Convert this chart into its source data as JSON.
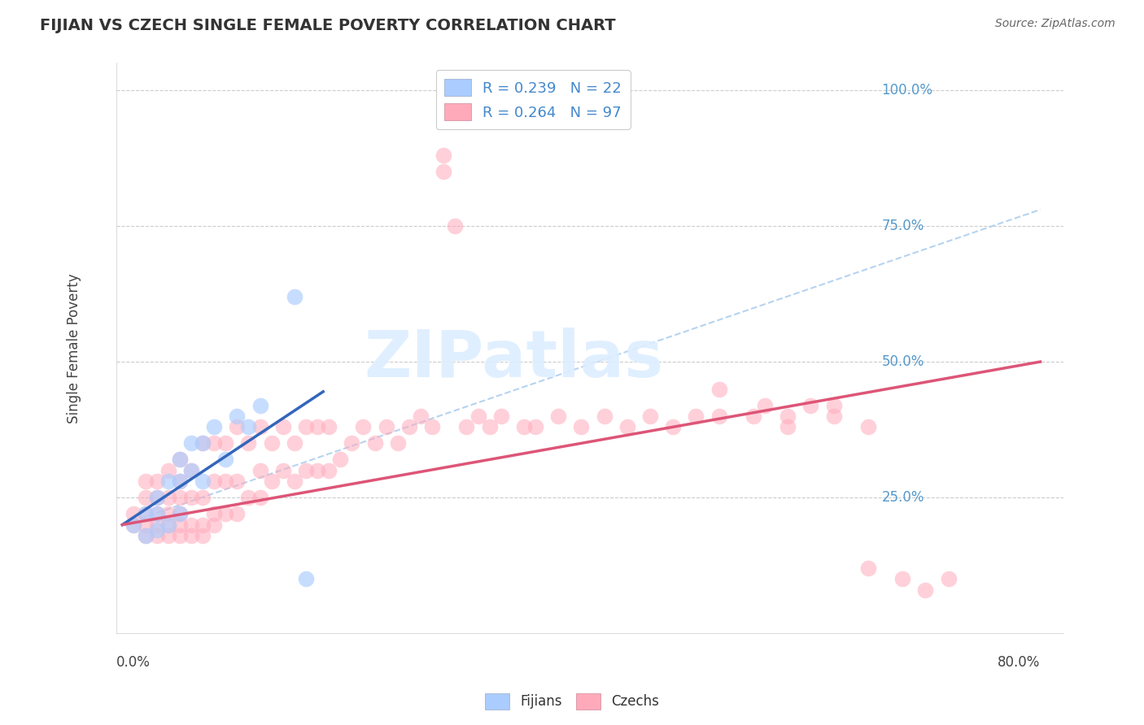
{
  "title": "FIJIAN VS CZECH SINGLE FEMALE POVERTY CORRELATION CHART",
  "source": "Source: ZipAtlas.com",
  "ylabel": "Single Female Poverty",
  "ytick_labels": [
    "25.0%",
    "50.0%",
    "75.0%",
    "100.0%"
  ],
  "ytick_values": [
    0.25,
    0.5,
    0.75,
    1.0
  ],
  "xlim": [
    0.0,
    0.8
  ],
  "ylim": [
    0.0,
    1.0
  ],
  "fijian_color": "#aaccff",
  "fijian_edge": "#88aaee",
  "czech_color": "#ffaabb",
  "czech_edge": "#ee88aa",
  "trendline_fijian_color": "#3366bb",
  "trendline_czech_color": "#dd5577",
  "trendline_dashed_color": "#aaccee",
  "grid_color": "#cccccc",
  "background_color": "#ffffff",
  "watermark": "ZIPatlas",
  "watermark_color": "#ddeeff",
  "fijians_x": [
    0.01,
    0.02,
    0.02,
    0.03,
    0.03,
    0.03,
    0.04,
    0.04,
    0.05,
    0.05,
    0.05,
    0.06,
    0.06,
    0.07,
    0.07,
    0.08,
    0.09,
    0.1,
    0.11,
    0.12,
    0.15,
    0.16
  ],
  "fijians_y": [
    0.2,
    0.22,
    0.18,
    0.19,
    0.22,
    0.25,
    0.2,
    0.28,
    0.22,
    0.28,
    0.32,
    0.3,
    0.35,
    0.28,
    0.35,
    0.38,
    0.32,
    0.4,
    0.38,
    0.42,
    0.62,
    0.1
  ],
  "czechs_x": [
    0.01,
    0.01,
    0.02,
    0.02,
    0.02,
    0.02,
    0.02,
    0.03,
    0.03,
    0.03,
    0.03,
    0.03,
    0.04,
    0.04,
    0.04,
    0.04,
    0.04,
    0.05,
    0.05,
    0.05,
    0.05,
    0.05,
    0.05,
    0.06,
    0.06,
    0.06,
    0.06,
    0.07,
    0.07,
    0.07,
    0.07,
    0.08,
    0.08,
    0.08,
    0.08,
    0.09,
    0.09,
    0.09,
    0.1,
    0.1,
    0.1,
    0.11,
    0.11,
    0.12,
    0.12,
    0.12,
    0.13,
    0.13,
    0.14,
    0.14,
    0.15,
    0.15,
    0.16,
    0.16,
    0.17,
    0.17,
    0.18,
    0.18,
    0.19,
    0.2,
    0.21,
    0.22,
    0.23,
    0.24,
    0.25,
    0.26,
    0.27,
    0.28,
    0.28,
    0.29,
    0.3,
    0.31,
    0.32,
    0.33,
    0.35,
    0.36,
    0.38,
    0.4,
    0.42,
    0.44,
    0.46,
    0.48,
    0.5,
    0.52,
    0.55,
    0.58,
    0.6,
    0.62,
    0.65,
    0.68,
    0.7,
    0.72,
    0.52,
    0.56,
    0.58,
    0.62,
    0.65
  ],
  "czechs_y": [
    0.2,
    0.22,
    0.18,
    0.2,
    0.22,
    0.25,
    0.28,
    0.18,
    0.2,
    0.22,
    0.25,
    0.28,
    0.18,
    0.2,
    0.22,
    0.25,
    0.3,
    0.18,
    0.2,
    0.22,
    0.25,
    0.28,
    0.32,
    0.18,
    0.2,
    0.25,
    0.3,
    0.18,
    0.2,
    0.25,
    0.35,
    0.2,
    0.22,
    0.28,
    0.35,
    0.22,
    0.28,
    0.35,
    0.22,
    0.28,
    0.38,
    0.25,
    0.35,
    0.25,
    0.3,
    0.38,
    0.28,
    0.35,
    0.3,
    0.38,
    0.28,
    0.35,
    0.3,
    0.38,
    0.3,
    0.38,
    0.3,
    0.38,
    0.32,
    0.35,
    0.38,
    0.35,
    0.38,
    0.35,
    0.38,
    0.4,
    0.38,
    0.85,
    0.88,
    0.75,
    0.38,
    0.4,
    0.38,
    0.4,
    0.38,
    0.38,
    0.4,
    0.38,
    0.4,
    0.38,
    0.4,
    0.38,
    0.4,
    0.4,
    0.4,
    0.38,
    0.42,
    0.4,
    0.12,
    0.1,
    0.08,
    0.1,
    0.45,
    0.42,
    0.4,
    0.42,
    0.38
  ],
  "fij_trend_x": [
    0.0,
    0.175
  ],
  "fij_trend_y": [
    0.2,
    0.445
  ],
  "cze_trend_x": [
    0.0,
    0.8
  ],
  "cze_trend_y": [
    0.2,
    0.5
  ],
  "dash_trend_x": [
    0.0,
    0.8
  ],
  "dash_trend_y": [
    0.2,
    0.78
  ]
}
